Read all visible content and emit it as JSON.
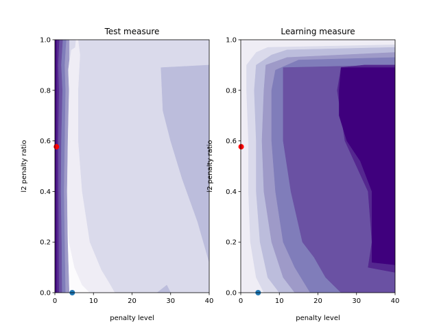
{
  "colors": {
    "contour_levels": [
      "#fcfbfd",
      "#efedf5",
      "#dadaeb",
      "#bcbddc",
      "#9e9ac8",
      "#807dba",
      "#6a51a3",
      "#54278f",
      "#3f007d"
    ],
    "red_marker": "#ff0000",
    "blue_marker": "#1f77b4"
  },
  "chart_data": [
    {
      "type": "contour",
      "title": "Test measure",
      "xlabel": "penalty level",
      "ylabel": "l2 penalty ratio",
      "xlim": [
        0,
        40
      ],
      "ylim": [
        0,
        1
      ],
      "xticks": [
        "0",
        "10",
        "20",
        "30",
        "40"
      ],
      "yticks": [
        "0.0",
        "0.2",
        "0.4",
        "0.6",
        "0.8",
        "1.0"
      ],
      "grid": false,
      "regions": [
        {
          "level": 2,
          "points": [
            [
              0,
              0
            ],
            [
              40,
              0
            ],
            [
              40,
              1
            ],
            [
              0,
              1
            ]
          ]
        },
        {
          "level": 1,
          "points": [
            [
              0,
              0
            ],
            [
              15.5,
              0
            ],
            [
              14,
              0.04
            ],
            [
              12,
              0.09
            ],
            [
              9,
              0.2
            ],
            [
              7,
              0.4
            ],
            [
              6,
              0.6
            ],
            [
              6,
              0.8
            ],
            [
              6.5,
              0.94
            ],
            [
              6,
              1
            ],
            [
              0,
              1
            ]
          ]
        },
        {
          "level": 0,
          "points": [
            [
              0,
              0
            ],
            [
              9,
              0
            ],
            [
              7,
              0.03
            ],
            [
              5,
              0.1
            ],
            [
              3.6,
              0.2
            ],
            [
              3,
              0.4
            ],
            [
              3,
              0.55
            ],
            [
              2.6,
              0.68
            ],
            [
              1.5,
              0.72
            ],
            [
              0,
              0.72
            ]
          ]
        },
        {
          "level": 3,
          "points": [
            [
              40,
              0.12
            ],
            [
              37,
              0.28
            ],
            [
              33,
              0.45
            ],
            [
              30,
              0.6
            ],
            [
              28,
              0.72
            ],
            [
              27.5,
              0.89
            ],
            [
              34,
              0.895
            ],
            [
              40,
              0.9
            ]
          ]
        },
        {
          "level": 3,
          "points": [
            [
              26.5,
              0
            ],
            [
              30,
              0
            ],
            [
              29,
              0.03
            ]
          ]
        },
        {
          "level": 4,
          "points": [
            [
              0,
              0
            ],
            [
              3.7,
              0
            ],
            [
              3.3,
              0.2
            ],
            [
              3.1,
              0.4
            ],
            [
              3.3,
              0.6
            ],
            [
              3.6,
              0.8
            ],
            [
              3.4,
              0.88
            ],
            [
              3.7,
              0.92
            ],
            [
              3.8,
              1
            ],
            [
              0,
              1
            ]
          ]
        },
        {
          "level": 2,
          "points": [
            [
              3.8,
              0.92
            ],
            [
              4.2,
              0.96
            ],
            [
              5.2,
              0.97
            ],
            [
              5.4,
              1
            ],
            [
              3.8,
              1
            ]
          ]
        },
        {
          "level": 5,
          "points": [
            [
              0,
              0
            ],
            [
              2.7,
              0
            ],
            [
              2.5,
              0.2
            ],
            [
              2.3,
              0.4
            ],
            [
              2.5,
              0.6
            ],
            [
              2.7,
              0.8
            ],
            [
              2.5,
              0.9
            ],
            [
              2.9,
              1
            ],
            [
              0,
              1
            ]
          ]
        },
        {
          "level": 6,
          "points": [
            [
              0,
              0
            ],
            [
              1.8,
              0
            ],
            [
              1.7,
              0.2
            ],
            [
              1.5,
              0.4
            ],
            [
              1.6,
              0.6
            ],
            [
              1.9,
              0.8
            ],
            [
              1.6,
              0.9
            ],
            [
              2.0,
              1
            ],
            [
              0,
              1
            ]
          ]
        },
        {
          "level": 7,
          "points": [
            [
              0,
              0
            ],
            [
              1.0,
              0
            ],
            [
              0.9,
              0.3
            ],
            [
              0.8,
              0.6
            ],
            [
              1.0,
              0.8
            ],
            [
              0.8,
              0.9
            ],
            [
              1.1,
              1
            ],
            [
              0,
              1
            ]
          ]
        },
        {
          "level": 8,
          "points": [
            [
              0,
              0
            ],
            [
              0.4,
              0
            ],
            [
              0.35,
              0.5
            ],
            [
              0.4,
              1
            ],
            [
              0,
              1
            ]
          ]
        }
      ],
      "points": [
        {
          "x": 0.4,
          "y": 0.577,
          "color": "red"
        },
        {
          "x": 4.5,
          "y": 0.0,
          "color": "blue"
        }
      ]
    },
    {
      "type": "contour",
      "title": "Learning measure",
      "xlabel": "penalty level",
      "ylabel": "l2 penalty ratio",
      "xlim": [
        0,
        40
      ],
      "ylim": [
        0,
        1
      ],
      "xticks": [
        "0",
        "10",
        "20",
        "30",
        "40"
      ],
      "yticks": [
        "0.0",
        "0.2",
        "0.4",
        "0.6",
        "0.8",
        "1.0"
      ],
      "grid": false,
      "regions": [
        {
          "level": 1,
          "points": [
            [
              0,
              0
            ],
            [
              40,
              0
            ],
            [
              40,
              1
            ],
            [
              0,
              1
            ]
          ]
        },
        {
          "level": 2,
          "points": [
            [
              40,
              0
            ],
            [
              6,
              0
            ],
            [
              4,
              0.06
            ],
            [
              2.5,
              0.2
            ],
            [
              2,
              0.4
            ],
            [
              2,
              0.6
            ],
            [
              1.5,
              0.8
            ],
            [
              1.5,
              0.9
            ],
            [
              4,
              0.95
            ],
            [
              7,
              0.97
            ],
            [
              40,
              0.98
            ]
          ]
        },
        {
          "level": 3,
          "points": [
            [
              40,
              0
            ],
            [
              10,
              0
            ],
            [
              7,
              0.06
            ],
            [
              5,
              0.2
            ],
            [
              4,
              0.4
            ],
            [
              4,
              0.6
            ],
            [
              3.5,
              0.8
            ],
            [
              4,
              0.9
            ],
            [
              8,
              0.94
            ],
            [
              12,
              0.96
            ],
            [
              40,
              0.97
            ]
          ]
        },
        {
          "level": 4,
          "points": [
            [
              40,
              0
            ],
            [
              14,
              0
            ],
            [
              11,
              0.06
            ],
            [
              8,
              0.2
            ],
            [
              6,
              0.4
            ],
            [
              5.5,
              0.6
            ],
            [
              6,
              0.8
            ],
            [
              6.5,
              0.9
            ],
            [
              12,
              0.93
            ],
            [
              40,
              0.95
            ]
          ]
        },
        {
          "level": 5,
          "points": [
            [
              40,
              0
            ],
            [
              18,
              0
            ],
            [
              14,
              0.1
            ],
            [
              11,
              0.2
            ],
            [
              9,
              0.4
            ],
            [
              8,
              0.6
            ],
            [
              8,
              0.8
            ],
            [
              9,
              0.88
            ],
            [
              15,
              0.92
            ],
            [
              40,
              0.93
            ]
          ]
        },
        {
          "level": 6,
          "points": [
            [
              40,
              0
            ],
            [
              26,
              0
            ],
            [
              22,
              0.06
            ],
            [
              19,
              0.14
            ],
            [
              16,
              0.2
            ],
            [
              13,
              0.4
            ],
            [
              11,
              0.6
            ],
            [
              11,
              0.89
            ],
            [
              40,
              0.9
            ]
          ]
        },
        {
          "level": 7,
          "points": [
            [
              40,
              0
            ],
            [
              40,
              0.9
            ],
            [
              32,
              0.9
            ],
            [
              26,
              0.89
            ],
            [
              25,
              0.8
            ],
            [
              27,
              0.6
            ],
            [
              30,
              0.5
            ],
            [
              33,
              0.4
            ],
            [
              34,
              0.2
            ],
            [
              33,
              0.1
            ],
            [
              40,
              0.08
            ]
          ]
        },
        {
          "level": 8,
          "points": [
            [
              40,
              0.11
            ],
            [
              34,
              0.12
            ],
            [
              34,
              0.2
            ],
            [
              34,
              0.4
            ],
            [
              31,
              0.52
            ],
            [
              27.5,
              0.6
            ],
            [
              25.5,
              0.7
            ],
            [
              25.5,
              0.8
            ],
            [
              26,
              0.89
            ],
            [
              32,
              0.89
            ],
            [
              40,
              0.89
            ]
          ]
        }
      ],
      "points": [
        {
          "x": 0.1,
          "y": 0.577,
          "color": "red"
        },
        {
          "x": 4.5,
          "y": 0.0,
          "color": "blue"
        }
      ]
    }
  ]
}
